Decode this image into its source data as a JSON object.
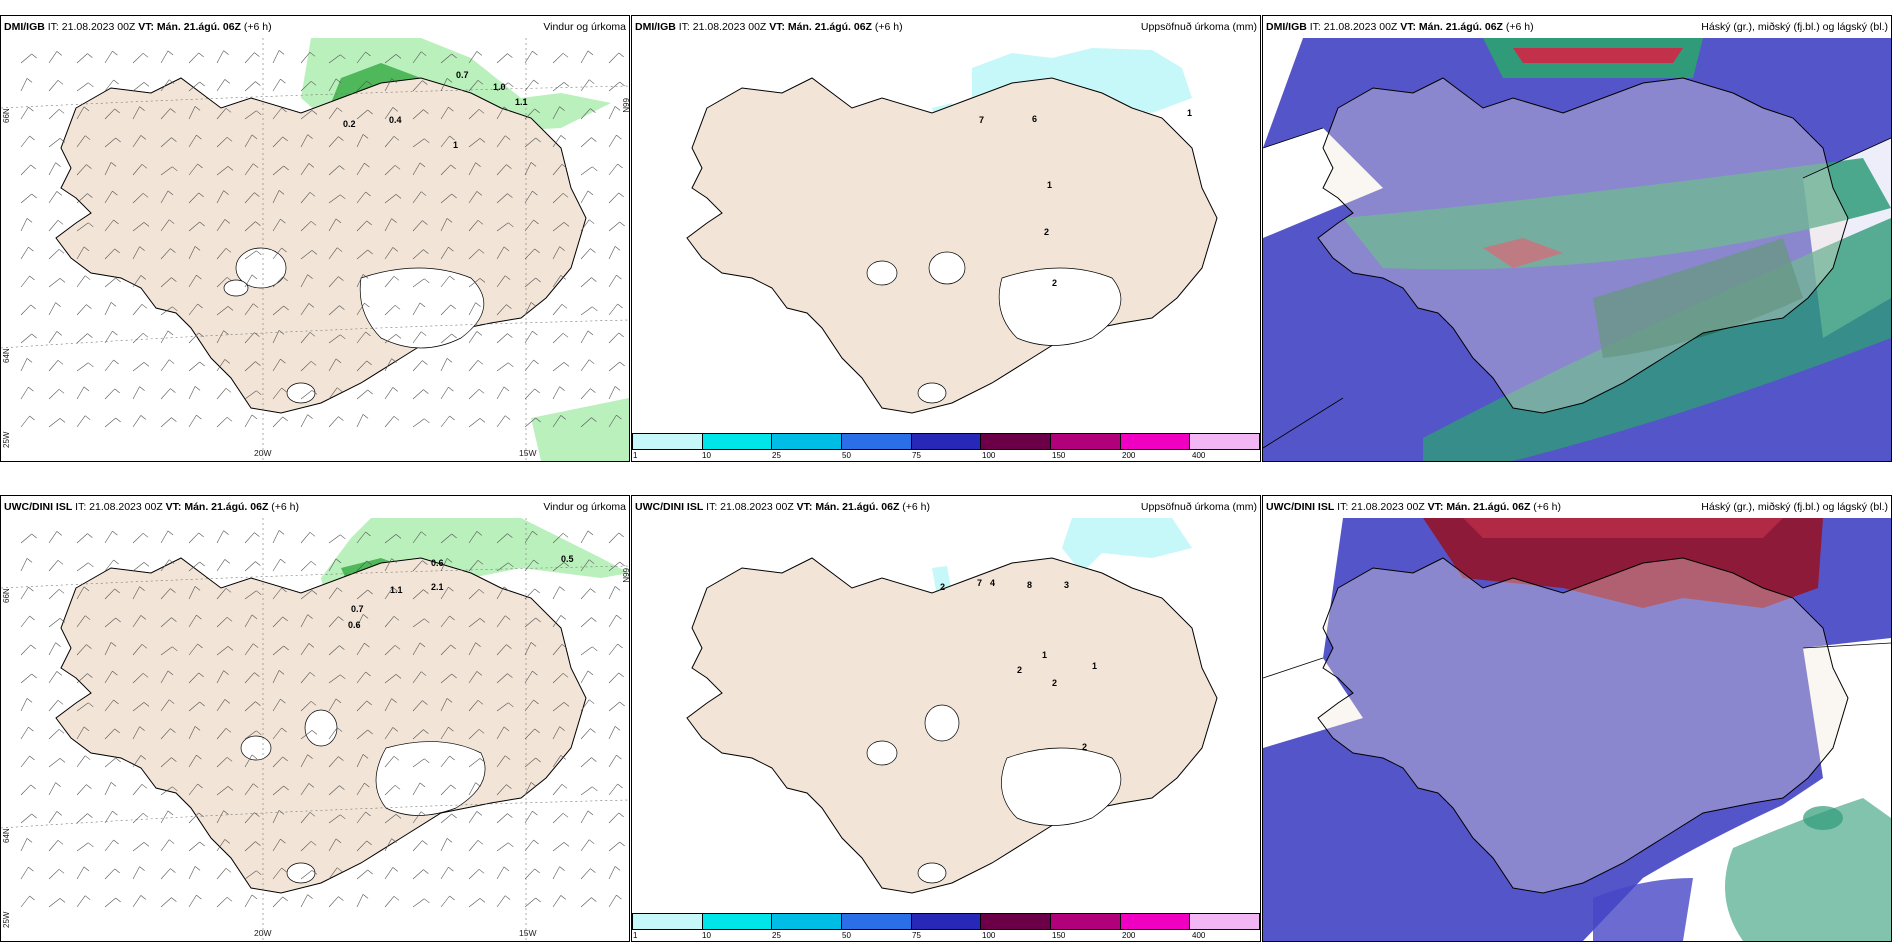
{
  "colors": {
    "land": "#f2e4d6",
    "precip_light": "#b9f0bb",
    "precip_mid": "#4fb85a",
    "precip_dark": "#0d5a1a",
    "accum_cyan": "#c6f7f9",
    "high_cloud": "#c2304a",
    "mid_cloud": "#2f9b78",
    "low_cloud": "#4646c6",
    "magenta": "#d46de0"
  },
  "rows": [
    {
      "model_label": "DMI/IGB",
      "it_text": "IT: 21.08.2023 00Z",
      "vt_label": "VT: Mán. 21.ágú. 06Z",
      "lead": "(+6 h)",
      "panels": [
        {
          "title": "Vindur og úrkoma",
          "type": "wind",
          "values": [
            {
              "label": "0.7"
            },
            {
              "label": "1.0"
            },
            {
              "label": "1.1"
            },
            {
              "label": "0.2"
            },
            {
              "label": "0.4"
            },
            {
              "label": "1"
            }
          ]
        },
        {
          "title": "Uppsöfnuð úrkoma (mm)",
          "type": "accum",
          "values": [
            {
              "label": "7"
            },
            {
              "label": "6"
            },
            {
              "label": "1"
            },
            {
              "label": "1"
            },
            {
              "label": "2"
            },
            {
              "label": "2"
            }
          ]
        },
        {
          "title": "Háský (gr.), miðský (fj.bl.) og lágský (bl.)",
          "type": "cloud"
        }
      ]
    },
    {
      "model_label": "UWC/DINI ISL",
      "it_text": "IT: 21.08.2023 00Z",
      "vt_label": "VT: Mán. 21.ágú. 06Z",
      "lead": "(+6 h)",
      "panels": [
        {
          "title": "Vindur og úrkoma",
          "type": "wind",
          "values": [
            {
              "label": "0.6"
            },
            {
              "label": "0.5"
            },
            {
              "label": "0.7"
            },
            {
              "label": "0.6"
            },
            {
              "label": "1.1"
            },
            {
              "label": "2.1"
            }
          ]
        },
        {
          "title": "Uppsöfnuð úrkoma (mm)",
          "type": "accum",
          "values": [
            {
              "label": "2"
            },
            {
              "label": "7"
            },
            {
              "label": "4"
            },
            {
              "label": "8"
            },
            {
              "label": "3"
            },
            {
              "label": "1"
            },
            {
              "label": "2"
            },
            {
              "label": "1"
            },
            {
              "label": "2"
            },
            {
              "label": "2"
            }
          ]
        },
        {
          "title": "Háský (gr.), miðský (fj.bl.) og lágský (bl.)",
          "type": "cloud"
        }
      ]
    }
  ],
  "axis_labels": {
    "lon_20w": "20W",
    "lon_15w": "15W",
    "lat_66n": "66N",
    "lat_64n": "64N",
    "lat_25w": "25W"
  },
  "colorbar": {
    "ticks": [
      "1",
      "10",
      "25",
      "50",
      "75",
      "100",
      "150",
      "200",
      "400"
    ],
    "colors": [
      "#c6f7f9",
      "#00e5ea",
      "#00bde6",
      "#2a6ee8",
      "#2828b8",
      "#6b0048",
      "#b0007a",
      "#f000c0",
      "#f2b6f4"
    ]
  }
}
